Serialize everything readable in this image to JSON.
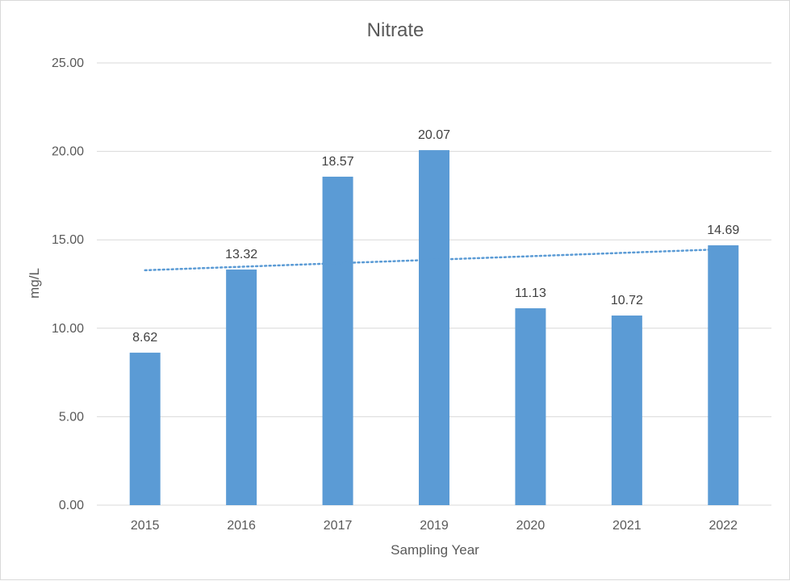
{
  "chart_data": {
    "type": "bar",
    "title": "Nitrate",
    "xlabel": "Sampling Year",
    "ylabel": "mg/L",
    "categories": [
      "2015",
      "2016",
      "2017",
      "2019",
      "2020",
      "2021",
      "2022"
    ],
    "values": [
      8.62,
      13.32,
      18.57,
      20.07,
      11.13,
      10.72,
      14.69
    ],
    "value_labels": [
      "8.62",
      "13.32",
      "18.57",
      "20.07",
      "11.13",
      "10.72",
      "14.69"
    ],
    "ylim": [
      0,
      25
    ],
    "y_ticks": [
      "0.00",
      "5.00",
      "10.00",
      "15.00",
      "20.00",
      "25.00"
    ],
    "y_tick_values": [
      0,
      5,
      10,
      15,
      20,
      25
    ],
    "grid": true,
    "legend": "none",
    "trendline": {
      "type": "linear",
      "style": "dotted",
      "start": 13.28,
      "end": 14.47
    },
    "colors": {
      "bar": "#5b9bd5",
      "trendline": "#5b9bd5",
      "grid": "#d9d9d9"
    }
  }
}
